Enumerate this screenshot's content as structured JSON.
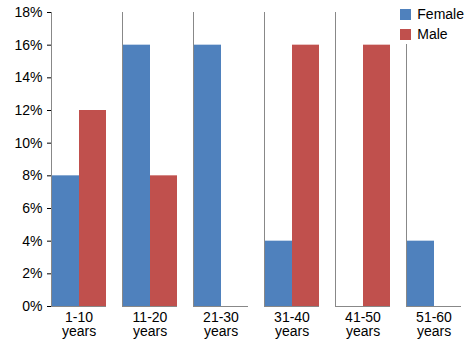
{
  "chart_data": {
    "type": "bar",
    "categories": [
      "1-10 years",
      "11-20 years",
      "21-30 years",
      "31-40 years",
      "41-50 years",
      "51-60 years"
    ],
    "series": [
      {
        "name": "Female",
        "color": "#4f81bd",
        "values": [
          8,
          16,
          16,
          4,
          0,
          4
        ]
      },
      {
        "name": "Male",
        "color": "#c0504d",
        "values": [
          12,
          8,
          0,
          16,
          16,
          0
        ]
      }
    ],
    "ylim": [
      0,
      18
    ],
    "yticks": [
      {
        "value": 0,
        "label": "0%"
      },
      {
        "value": 2,
        "label": "2%"
      },
      {
        "value": 4,
        "label": "4%"
      },
      {
        "value": 6,
        "label": "6%"
      },
      {
        "value": 8,
        "label": "8%"
      },
      {
        "value": 10,
        "label": "10%"
      },
      {
        "value": 12,
        "label": "12%"
      },
      {
        "value": 14,
        "label": "14%"
      },
      {
        "value": 16,
        "label": "16%"
      },
      {
        "value": 18,
        "label": "18%"
      }
    ],
    "grid": false,
    "legend": "top-right"
  }
}
